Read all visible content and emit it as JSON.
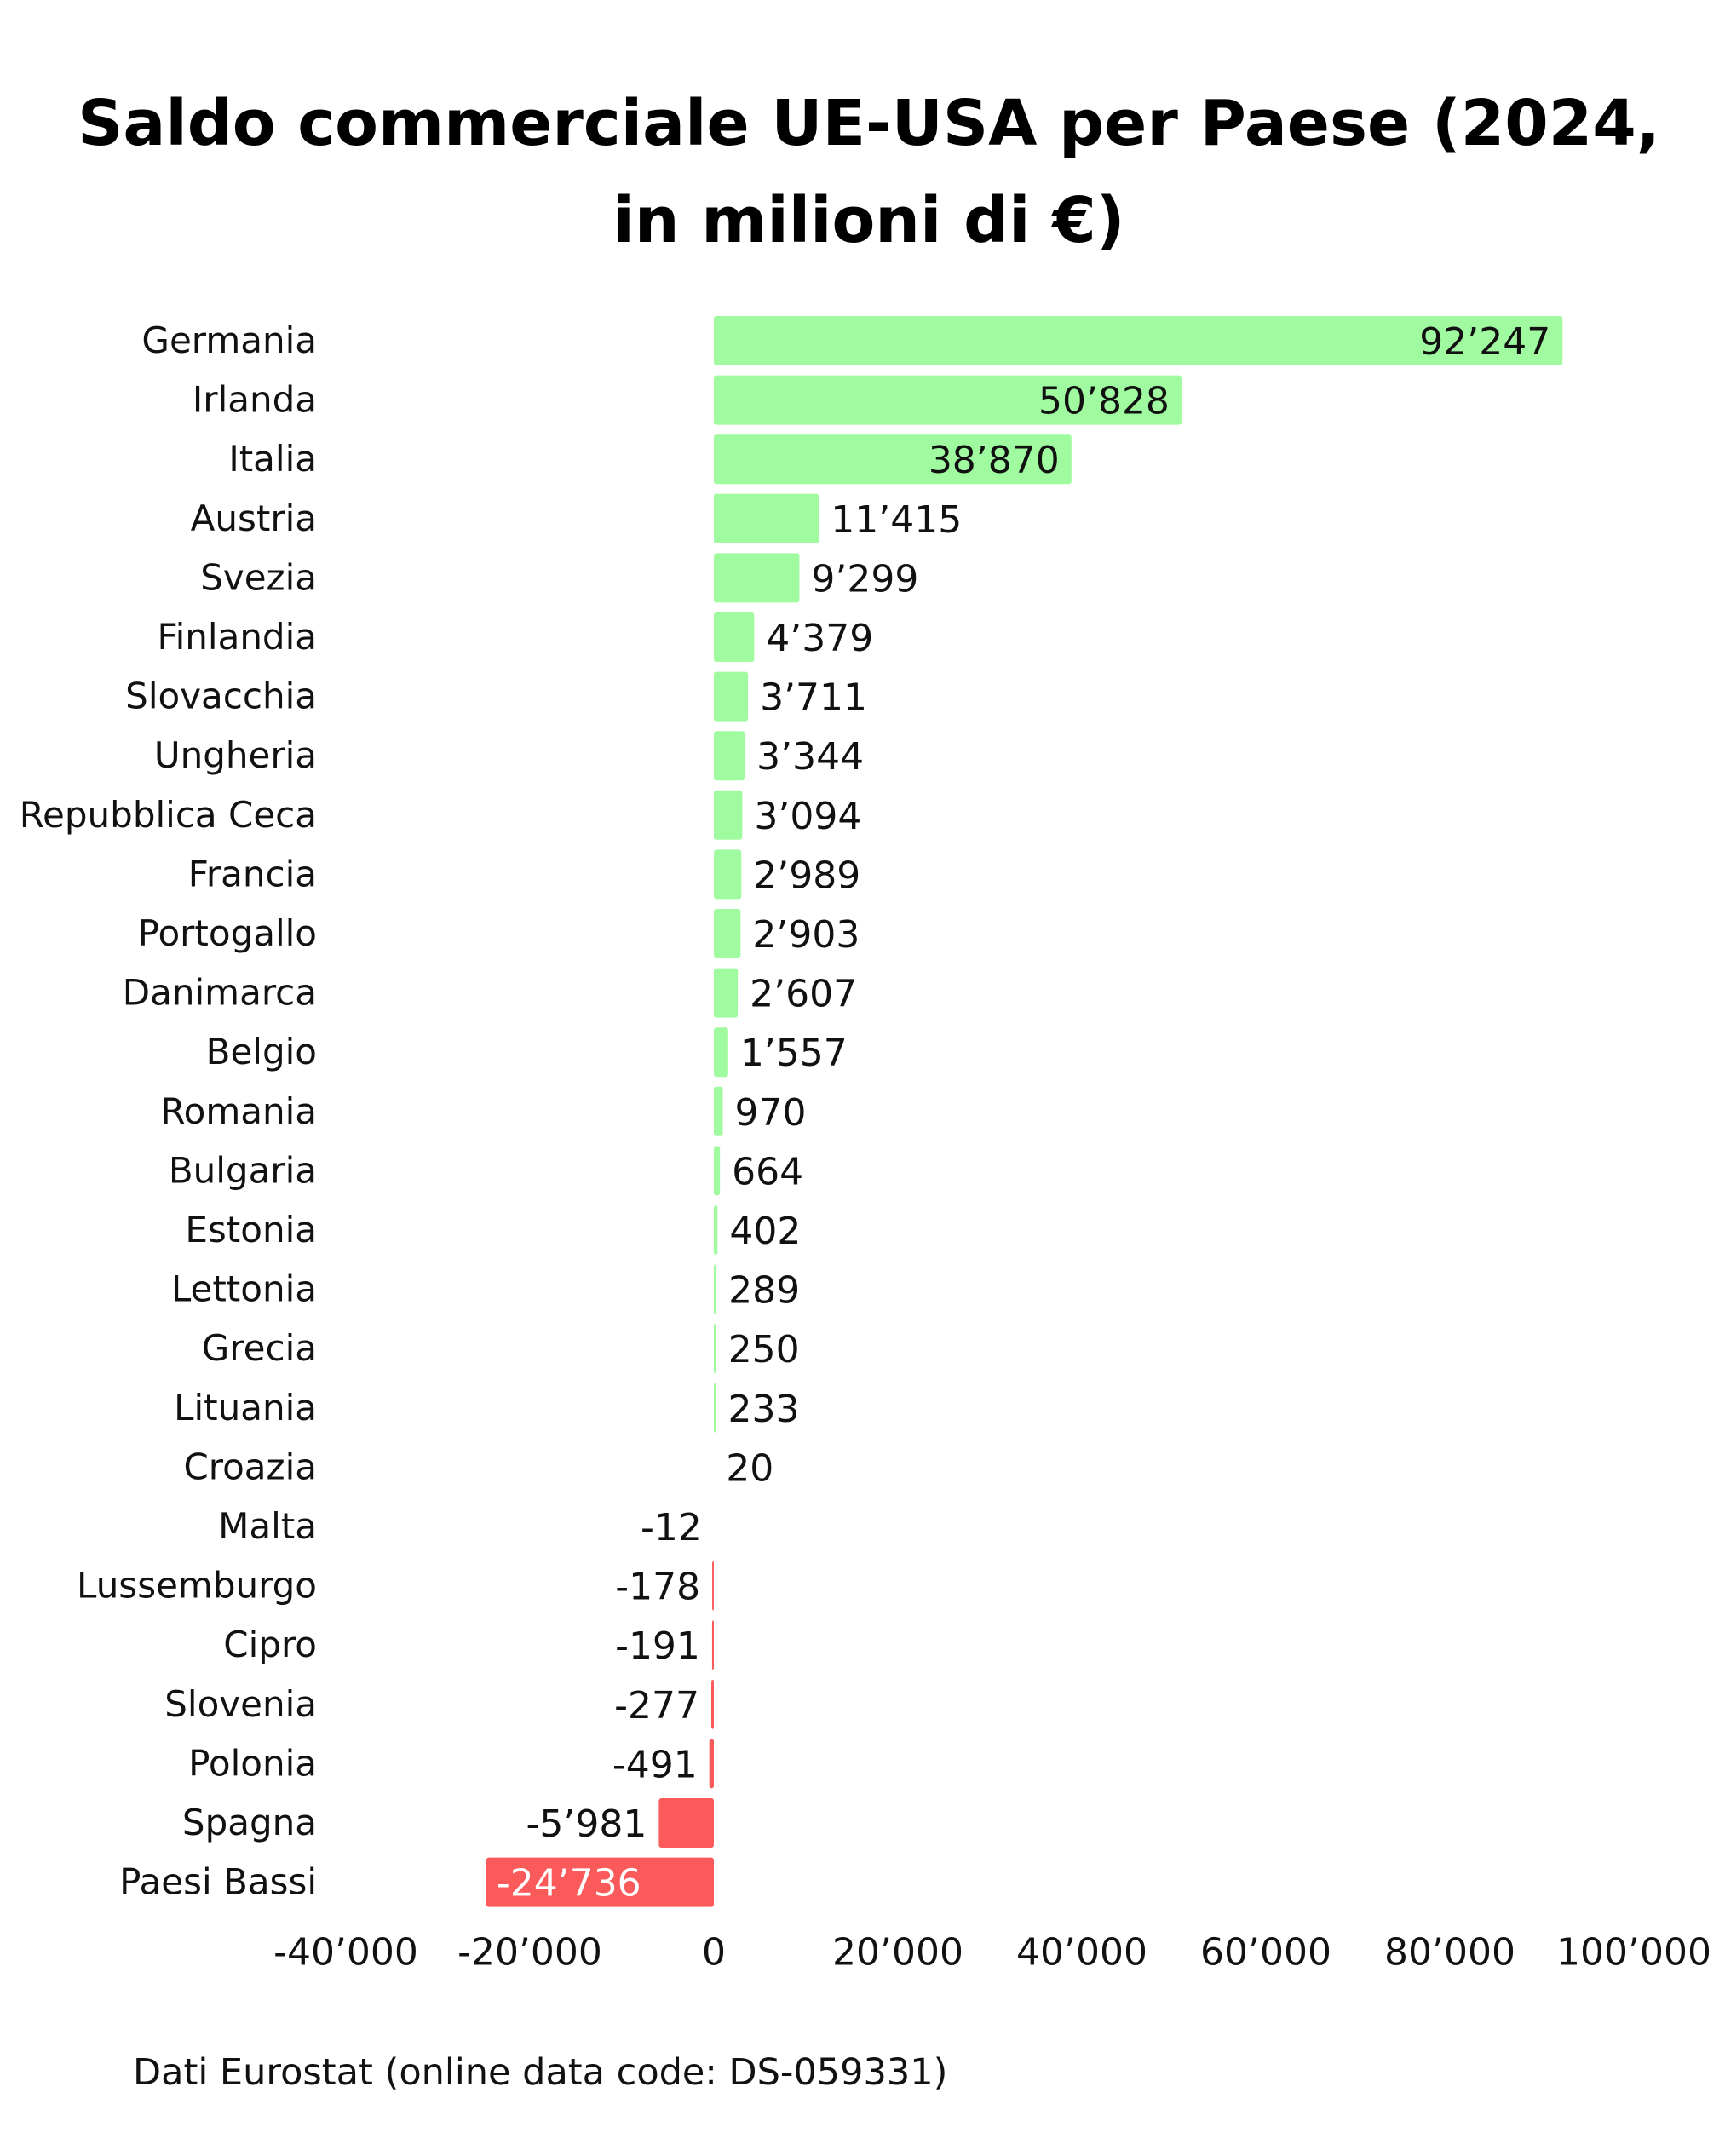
{
  "chart_data": {
    "type": "bar",
    "orientation": "horizontal",
    "title": "Saldo commerciale UE-USA per Paese (2024, in milioni di €)",
    "categories": [
      "Germania",
      "Irlanda",
      "Italia",
      "Austria",
      "Svezia",
      "Finlandia",
      "Slovacchia",
      "Ungheria",
      "Repubblica Ceca",
      "Francia",
      "Portogallo",
      "Danimarca",
      "Belgio",
      "Romania",
      "Bulgaria",
      "Estonia",
      "Lettonia",
      "Grecia",
      "Lituania",
      "Croazia",
      "Malta",
      "Lussemburgo",
      "Cipro",
      "Slovenia",
      "Polonia",
      "Spagna",
      "Paesi Bassi"
    ],
    "values": [
      92247,
      50828,
      38870,
      11415,
      9299,
      4379,
      3711,
      3344,
      3094,
      2989,
      2903,
      2607,
      1557,
      970,
      664,
      402,
      289,
      250,
      233,
      20,
      -12,
      -178,
      -191,
      -277,
      -491,
      -5981,
      -24736
    ],
    "value_labels": [
      "92’247",
      "50’828",
      "38’870",
      "11’415",
      "9’299",
      "4’379",
      "3’711",
      "3’344",
      "3’094",
      "2’989",
      "2’903",
      "2’607",
      "1’557",
      "970",
      "664",
      "402",
      "289",
      "250",
      "233",
      "20",
      "-12",
      "-178",
      "-191",
      "-277",
      "-491",
      "-5’981",
      "-24’736"
    ],
    "xlim": [
      -40000,
      100000
    ],
    "xticks": [
      -40000,
      -20000,
      0,
      20000,
      40000,
      60000,
      80000,
      100000
    ],
    "xtick_labels": [
      "-40’000",
      "-20’000",
      "0",
      "20’000",
      "40’000",
      "60’000",
      "80’000",
      "100’000"
    ],
    "xlabel": "",
    "ylabel": "",
    "grid": false,
    "legend": "none",
    "colors": {
      "positive": "#a0fba0",
      "negative": "#fb5a5a",
      "label_inside_negative": "#ffffff",
      "text": "#111111"
    }
  },
  "source": "Dati Eurostat (online data code: DS-059331)"
}
